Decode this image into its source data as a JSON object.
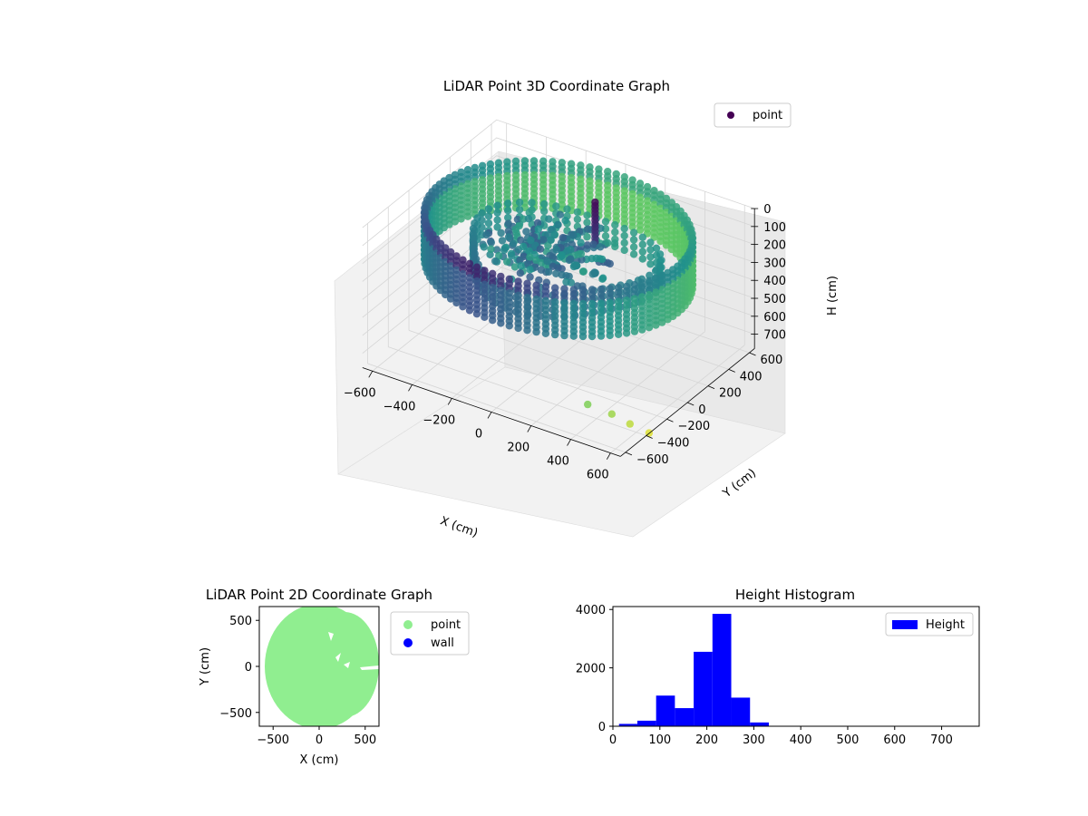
{
  "chart_data": [
    {
      "id": "lidar-3d",
      "type": "scatter",
      "projection": "3d",
      "title": "LiDAR Point 3D Coordinate Graph",
      "xlabel": "X (cm)",
      "ylabel": "Y (cm)",
      "zlabel": "H (cm)",
      "xlim": [
        -650,
        650
      ],
      "ylim": [
        -650,
        650
      ],
      "zlim": [
        780,
        0
      ],
      "z_inverted": true,
      "xticks": [
        "−600",
        "−400",
        "−200",
        "0",
        "200",
        "400",
        "600"
      ],
      "yticks": [
        "−600",
        "−400",
        "−200",
        "0",
        "200",
        "400",
        "600"
      ],
      "zticks": [
        "0",
        "100",
        "200",
        "300",
        "400",
        "500",
        "600",
        "700"
      ],
      "xtick_values": [
        -600,
        -400,
        -200,
        0,
        200,
        400,
        600
      ],
      "ytick_values": [
        -600,
        -400,
        -200,
        0,
        200,
        400,
        600
      ],
      "ztick_values": [
        0,
        100,
        200,
        300,
        400,
        500,
        600,
        700
      ],
      "colormap": "viridis",
      "series": [
        {
          "name": "point",
          "color": "#440154",
          "description": "ring of wall points ~radius 620 cm, heights 0–300 cm, plus interior clusters"
        }
      ],
      "outliers": [
        {
          "x": 480,
          "y": -640,
          "z": 560
        },
        {
          "x": 560,
          "y": -560,
          "z": 620
        },
        {
          "x": 620,
          "y": -500,
          "z": 680
        },
        {
          "x": 680,
          "y": -430,
          "z": 740
        }
      ],
      "grid": true,
      "legend": "top-right"
    },
    {
      "id": "lidar-2d",
      "type": "scatter",
      "title": "LiDAR Point 2D Coordinate Graph",
      "xlabel": "X (cm)",
      "ylabel": "Y (cm)",
      "xlim": [
        -650,
        650
      ],
      "ylim": [
        -650,
        650
      ],
      "xticks": [
        "−500",
        "0",
        "500"
      ],
      "yticks": [
        "−500",
        "0",
        "500"
      ],
      "xtick_values": [
        -500,
        0,
        500
      ],
      "ytick_values": [
        -500,
        0,
        500
      ],
      "series": [
        {
          "name": "point",
          "color": "#90ee90",
          "shape": "filled disc, radius ~620 cm"
        },
        {
          "name": "wall",
          "color": "#0000ff"
        }
      ],
      "legend": "outside-right"
    },
    {
      "id": "height-hist",
      "type": "bar",
      "title": "Height Histogram",
      "xlabel": "",
      "ylabel": "",
      "xlim": [
        0,
        780
      ],
      "ylim": [
        0,
        4100
      ],
      "xticks": [
        "0",
        "100",
        "200",
        "300",
        "400",
        "500",
        "600",
        "700"
      ],
      "yticks": [
        "0",
        "2000",
        "4000"
      ],
      "xtick_values": [
        0,
        100,
        200,
        300,
        400,
        500,
        600,
        700
      ],
      "ytick_values": [
        0,
        2000,
        4000
      ],
      "bin_edges": [
        13,
        52,
        92,
        132,
        172,
        212,
        252,
        292,
        332
      ],
      "counts": [
        80,
        190,
        1050,
        620,
        2550,
        3850,
        980,
        130
      ],
      "series": [
        {
          "name": "Height",
          "color": "#0000ff"
        }
      ],
      "legend": "top-right"
    }
  ]
}
